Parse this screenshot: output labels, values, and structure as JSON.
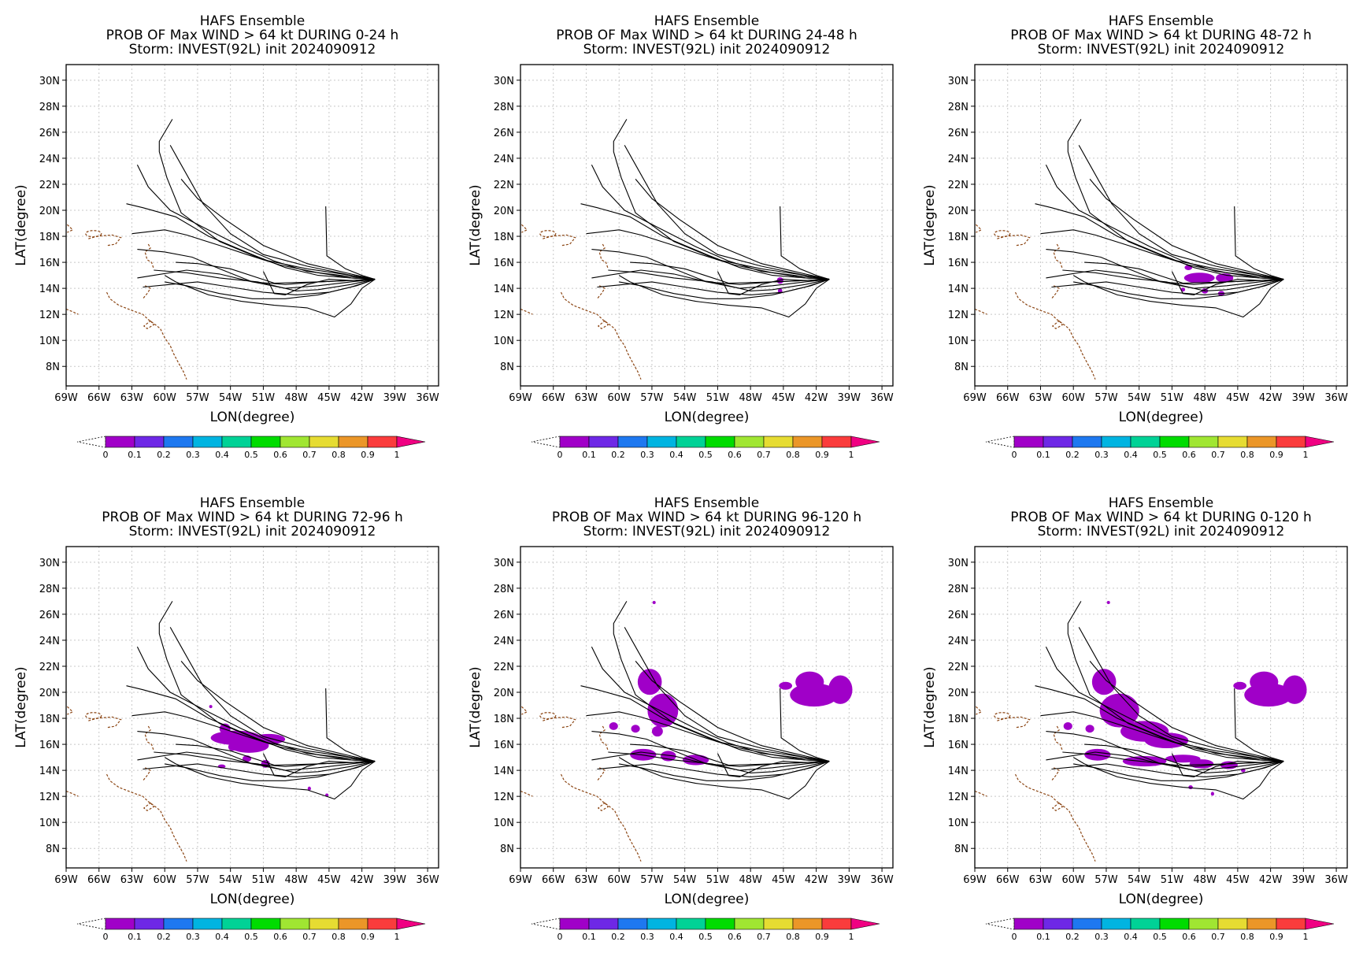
{
  "figure": {
    "common_title": "HAFS Ensemble",
    "storm_line": "Storm: INVEST(92L) init 2024090912",
    "xlabel": "LON(degree)",
    "ylabel": "LAT(degree)",
    "lon_ticks": [
      "69W",
      "66W",
      "63W",
      "60W",
      "57W",
      "54W",
      "51W",
      "48W",
      "45W",
      "42W",
      "39W",
      "36W"
    ],
    "lat_ticks": [
      "30N",
      "28N",
      "26N",
      "24N",
      "22N",
      "20N",
      "18N",
      "16N",
      "14N",
      "12N",
      "10N",
      "8N"
    ],
    "colorbar_labels": [
      "0",
      "0.1",
      "0.2",
      "0.3",
      "0.4",
      "0.5",
      "0.6",
      "0.7",
      "0.8",
      "0.9",
      "1"
    ],
    "colorbar_colors": [
      "#a000c8",
      "#6e28e6",
      "#1e78f0",
      "#00b4e1",
      "#00d296",
      "#00dc00",
      "#a0e632",
      "#e6dc32",
      "#eb9628",
      "#fa3c3c",
      "#f00082"
    ],
    "panels": [
      {
        "title": "HAFS Ensemble",
        "line2": "PROB OF Max WIND > 64 kt DURING  0-24 h",
        "line3": "Storm: INVEST(92L) init 2024090912"
      },
      {
        "title": "HAFS Ensemble",
        "line2": "PROB OF Max WIND > 64 kt DURING 24-48 h",
        "line3": "Storm: INVEST(92L) init 2024090912"
      },
      {
        "title": "HAFS Ensemble",
        "line2": "PROB OF Max WIND > 64 kt DURING 48-72 h",
        "line3": "Storm: INVEST(92L) init 2024090912"
      },
      {
        "title": "HAFS Ensemble",
        "line2": "PROB OF Max WIND > 64 kt DURING 72-96 h",
        "line3": "Storm: INVEST(92L) init 2024090912"
      },
      {
        "title": "HAFS Ensemble",
        "line2": "PROB OF Max WIND > 64 kt DURING 96-120 h",
        "line3": "Storm: INVEST(92L) init 2024090912"
      },
      {
        "title": "HAFS Ensemble",
        "line2": "PROB OF Max WIND > 64 kt DURING 0-120 h",
        "line3": "Storm: INVEST(92L) init 2024090912"
      }
    ],
    "tracks_lonlat": [
      [
        [
          -40.8,
          14.7
        ],
        [
          -43,
          15
        ],
        [
          -47,
          15.5
        ],
        [
          -51,
          16.2
        ],
        [
          -55,
          17.6
        ],
        [
          -58.5,
          19.8
        ],
        [
          -59.8,
          22.5
        ],
        [
          -60.5,
          24.5
        ],
        [
          -60.5,
          25.3
        ],
        [
          -59.3,
          27.0
        ]
      ],
      [
        [
          -40.8,
          14.7
        ],
        [
          -43,
          15
        ],
        [
          -47,
          15.7
        ],
        [
          -51,
          16.6
        ],
        [
          -54,
          18.2
        ],
        [
          -56.5,
          20.5
        ],
        [
          -58.5,
          23.5
        ],
        [
          -59.5,
          25.0
        ]
      ],
      [
        [
          -40.8,
          14.7
        ],
        [
          -43,
          15.1
        ],
        [
          -47,
          15.9
        ],
        [
          -51,
          17.3
        ],
        [
          -54.5,
          19.3
        ],
        [
          -57,
          20.9
        ],
        [
          -58.5,
          22.4
        ]
      ],
      [
        [
          -40.8,
          14.7
        ],
        [
          -43,
          14.9
        ],
        [
          -47,
          15.3
        ],
        [
          -50,
          16.1
        ],
        [
          -53,
          17.2
        ],
        [
          -56.5,
          18.7
        ],
        [
          -59.5,
          20.0
        ],
        [
          -61.5,
          21.8
        ],
        [
          -62.5,
          23.5
        ]
      ],
      [
        [
          -40.8,
          14.7
        ],
        [
          -43,
          14.8
        ],
        [
          -46,
          15.0
        ],
        [
          -49,
          15.6
        ],
        [
          -52,
          16.6
        ],
        [
          -56,
          18.0
        ],
        [
          -59,
          19.5
        ],
        [
          -62,
          20.2
        ],
        [
          -63.5,
          20.5
        ]
      ],
      [
        [
          -40.8,
          14.7
        ],
        [
          -43,
          14.8
        ],
        [
          -46,
          15.2
        ],
        [
          -49.5,
          15.8
        ],
        [
          -52.5,
          16.6
        ],
        [
          -55,
          17.3
        ],
        [
          -58,
          18.1
        ],
        [
          -60,
          18.5
        ],
        [
          -63,
          18.2
        ]
      ],
      [
        [
          -40.8,
          14.7
        ],
        [
          -43,
          14.6
        ],
        [
          -46,
          14.5
        ],
        [
          -49,
          14.3
        ],
        [
          -52,
          14.5
        ],
        [
          -55,
          15.1
        ],
        [
          -58,
          15.4
        ],
        [
          -61,
          15.0
        ],
        [
          -62.5,
          14.8
        ]
      ],
      [
        [
          -40.8,
          14.7
        ],
        [
          -43,
          14.5
        ],
        [
          -46,
          14.2
        ],
        [
          -49,
          14.0
        ],
        [
          -52,
          14.5
        ],
        [
          -55,
          15.5
        ],
        [
          -57.5,
          16.4
        ],
        [
          -60,
          16.8
        ],
        [
          -62.5,
          17.0
        ]
      ],
      [
        [
          -40.8,
          14.7
        ],
        [
          -43,
          14.6
        ],
        [
          -46,
          14.5
        ],
        [
          -50,
          14.4
        ],
        [
          -54,
          15.5
        ],
        [
          -57,
          15.9
        ],
        [
          -59,
          16.0
        ]
      ],
      [
        [
          -40.8,
          14.7
        ],
        [
          -42.5,
          14.2
        ],
        [
          -45,
          13.7
        ],
        [
          -48,
          13.5
        ],
        [
          -51,
          13.7
        ],
        [
          -54,
          14.1
        ],
        [
          -57,
          14.5
        ],
        [
          -59.5,
          14.3
        ],
        [
          -62,
          14.1
        ]
      ],
      [
        [
          -40.8,
          14.7
        ],
        [
          -43,
          14.3
        ],
        [
          -46,
          13.9
        ],
        [
          -48,
          13.8
        ],
        [
          -51.5,
          14.5
        ],
        [
          -55,
          14.8
        ],
        [
          -58,
          15.2
        ],
        [
          -61,
          15.4
        ]
      ],
      [
        [
          -40.8,
          14.7
        ],
        [
          -43,
          14.1
        ],
        [
          -46,
          13.5
        ],
        [
          -49,
          13.2
        ],
        [
          -52,
          13.2
        ],
        [
          -55,
          13.6
        ],
        [
          -58,
          14.2
        ],
        [
          -60,
          14.5
        ]
      ],
      [
        [
          -40.8,
          14.7
        ],
        [
          -42,
          14.0
        ],
        [
          -43,
          12.8
        ],
        [
          -44.5,
          11.8
        ],
        [
          -47,
          12.5
        ],
        [
          -50,
          12.7
        ],
        [
          -53,
          13.0
        ],
        [
          -56,
          13.5
        ],
        [
          -59,
          14.5
        ],
        [
          -60,
          15.0
        ]
      ],
      [
        [
          -40.8,
          14.7
        ],
        [
          -42,
          15
        ],
        [
          -43.5,
          15.5
        ],
        [
          -45.2,
          16.5
        ],
        [
          -45.3,
          20.3
        ]
      ],
      [
        [
          -40.8,
          14.7
        ],
        [
          -43,
          14.6
        ],
        [
          -45,
          14.7
        ],
        [
          -47,
          14.3
        ],
        [
          -49,
          13.5
        ],
        [
          -50,
          13.6
        ],
        [
          -51,
          15.3
        ]
      ]
    ],
    "prob_blobs": [
      [],
      [
        [
          -45.3,
          14.6,
          0.3,
          0.25
        ],
        [
          -45.3,
          13.8,
          0.2,
          0.2
        ]
      ],
      [
        [
          -49.5,
          15.6,
          0.35,
          0.2
        ],
        [
          -48.5,
          14.8,
          1.4,
          0.4
        ],
        [
          -46.2,
          14.8,
          0.8,
          0.35
        ],
        [
          -48,
          13.8,
          0.3,
          0.2
        ],
        [
          -50,
          13.9,
          0.2,
          0.15
        ],
        [
          -46.5,
          13.6,
          0.3,
          0.2
        ]
      ],
      [
        [
          -55.8,
          18.9,
          0.1,
          0.1
        ],
        [
          -54.5,
          17.2,
          0.5,
          0.4
        ],
        [
          -53.5,
          16.5,
          2.3,
          0.55
        ],
        [
          -52.3,
          15.9,
          1.8,
          0.55
        ],
        [
          -50.5,
          16.4,
          1.5,
          0.4
        ],
        [
          -53.8,
          15.8,
          0.4,
          0.3
        ],
        [
          -52.5,
          14.9,
          0.4,
          0.25
        ],
        [
          -50.8,
          14.5,
          0.4,
          0.3
        ],
        [
          -54.8,
          14.3,
          0.35,
          0.15
        ],
        [
          -46.8,
          12.6,
          0.15,
          0.15
        ],
        [
          -45.2,
          12.1,
          0.1,
          0.1
        ]
      ],
      [
        [
          -56.8,
          26.9,
          0.1,
          0.1
        ],
        [
          -57.2,
          20.8,
          1.1,
          1.0
        ],
        [
          -56.0,
          18.6,
          1.4,
          1.3
        ],
        [
          -58.5,
          17.2,
          0.4,
          0.3
        ],
        [
          -60.5,
          17.4,
          0.4,
          0.3
        ],
        [
          -56.5,
          17.0,
          0.5,
          0.4
        ],
        [
          -57.8,
          15.2,
          1.2,
          0.45
        ],
        [
          -55.5,
          15.1,
          0.7,
          0.4
        ],
        [
          -53.0,
          14.8,
          1.2,
          0.4
        ],
        [
          -44.8,
          20.5,
          0.6,
          0.3
        ],
        [
          -42.6,
          20.8,
          1.3,
          0.8
        ],
        [
          -42.2,
          19.8,
          2.2,
          0.9
        ],
        [
          -39.8,
          20.2,
          1.1,
          1.1
        ]
      ],
      [
        [
          -56.8,
          26.9,
          0.1,
          0.1
        ],
        [
          -57.2,
          20.8,
          1.1,
          1.0
        ],
        [
          -55.8,
          18.6,
          1.8,
          1.3
        ],
        [
          -53.5,
          17.0,
          2.2,
          0.8
        ],
        [
          -51.5,
          16.3,
          2.0,
          0.6
        ],
        [
          -58.5,
          17.2,
          0.4,
          0.3
        ],
        [
          -60.5,
          17.4,
          0.4,
          0.3
        ],
        [
          -57.8,
          15.2,
          1.2,
          0.45
        ],
        [
          -53.5,
          14.7,
          2.0,
          0.4
        ],
        [
          -50.0,
          14.9,
          1.6,
          0.3
        ],
        [
          -48.3,
          14.5,
          1.1,
          0.35
        ],
        [
          -45.8,
          14.4,
          0.8,
          0.3
        ],
        [
          -49.3,
          12.7,
          0.2,
          0.15
        ],
        [
          -47.3,
          12.2,
          0.15,
          0.15
        ],
        [
          -44.8,
          20.5,
          0.6,
          0.3
        ],
        [
          -42.6,
          20.8,
          1.3,
          0.8
        ],
        [
          -42.2,
          19.8,
          2.2,
          0.9
        ],
        [
          -39.8,
          20.2,
          1.1,
          1.1
        ],
        [
          -44.5,
          14.0,
          0.2,
          0.15
        ]
      ]
    ],
    "map_bounds": {
      "lon_min": -69,
      "lon_max": -35,
      "lat_min": 6.5,
      "lat_max": 31.2
    },
    "prob_fill_color": "#a000c8"
  }
}
